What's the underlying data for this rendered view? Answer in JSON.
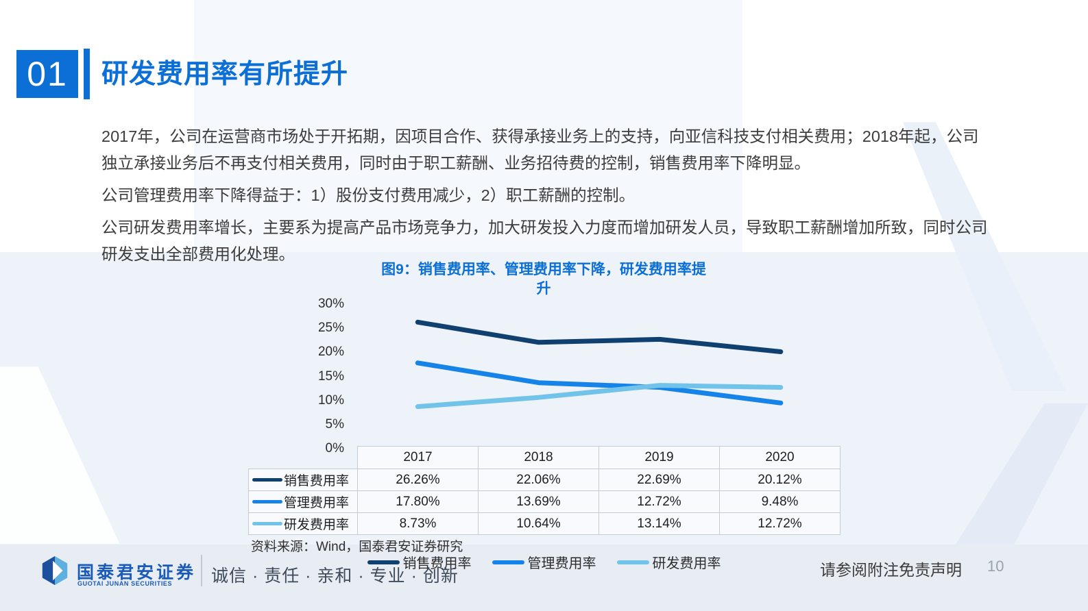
{
  "slide": {
    "section_number": "01",
    "title": "研发费用率有所提升",
    "paragraphs": [
      "2017年，公司在运营商市场处于开拓期，因项目合作、获得承接业务上的支持，向亚信科技支付相关费用；2018年起，公司独立承接业务后不再支付相关费用，同时由于职工薪酬、业务招待费的控制，销售费用率下降明显。",
      "公司管理费用率下降得益于：1）股份支付费用减少，2）职工薪酬的控制。",
      "公司研发费用率增长，主要系为提高产品市场竞争力，加大研发投入力度而增加研发人员，导致职工薪酬增加所致，同时公司研发支出全部费用化处理。"
    ],
    "colors": {
      "brand_blue": "#0c6fd6",
      "series_navy": "#10406f",
      "series_blue": "#1583e8",
      "series_light_blue": "#72c3ea"
    },
    "footer": {
      "brand_cn": "国泰君安证券",
      "brand_en": "GUOTAI JUNAN SECURITIES",
      "slogan": "诚信 · 责任 · 亲和 · 专业 · 创新",
      "disclaimer": "请参阅附注免责声明",
      "page_number": "10"
    }
  },
  "figure": {
    "title_line1": "图9：销售费用率、管理费用率下降，研发费用率提",
    "title_line2": "升",
    "source": "资料来源：Wind，国泰君安证券研究"
  },
  "chart_data": {
    "type": "line",
    "title": "图9：销售费用率、管理费用率下降，研发费用率提升",
    "categories": [
      "2017",
      "2018",
      "2019",
      "2020"
    ],
    "series": [
      {
        "name": "销售费用率",
        "values": [
          26.26,
          22.06,
          22.69,
          20.12
        ],
        "color": "#10406f"
      },
      {
        "name": "管理费用率",
        "values": [
          17.8,
          13.69,
          12.72,
          9.48
        ],
        "color": "#1583e8"
      },
      {
        "name": "研发费用率",
        "values": [
          8.73,
          10.64,
          13.14,
          12.72
        ],
        "color": "#72c3ea"
      }
    ],
    "xlabel": "",
    "ylabel": "",
    "ylim": [
      0,
      30
    ],
    "ytick_labels": [
      "0%",
      "5%",
      "10%",
      "15%",
      "20%",
      "25%",
      "30%"
    ],
    "grid": false,
    "legend_position": "bottom"
  },
  "table": {
    "col_headers": [
      "2017",
      "2018",
      "2019",
      "2020"
    ],
    "rows": [
      {
        "label": "销售费用率",
        "values": [
          "26.26%",
          "22.06%",
          "22.69%",
          "20.12%"
        ]
      },
      {
        "label": "管理费用率",
        "values": [
          "17.80%",
          "13.69%",
          "12.72%",
          "9.48%"
        ]
      },
      {
        "label": "研发费用率",
        "values": [
          "8.73%",
          "10.64%",
          "13.14%",
          "12.72%"
        ]
      }
    ]
  }
}
